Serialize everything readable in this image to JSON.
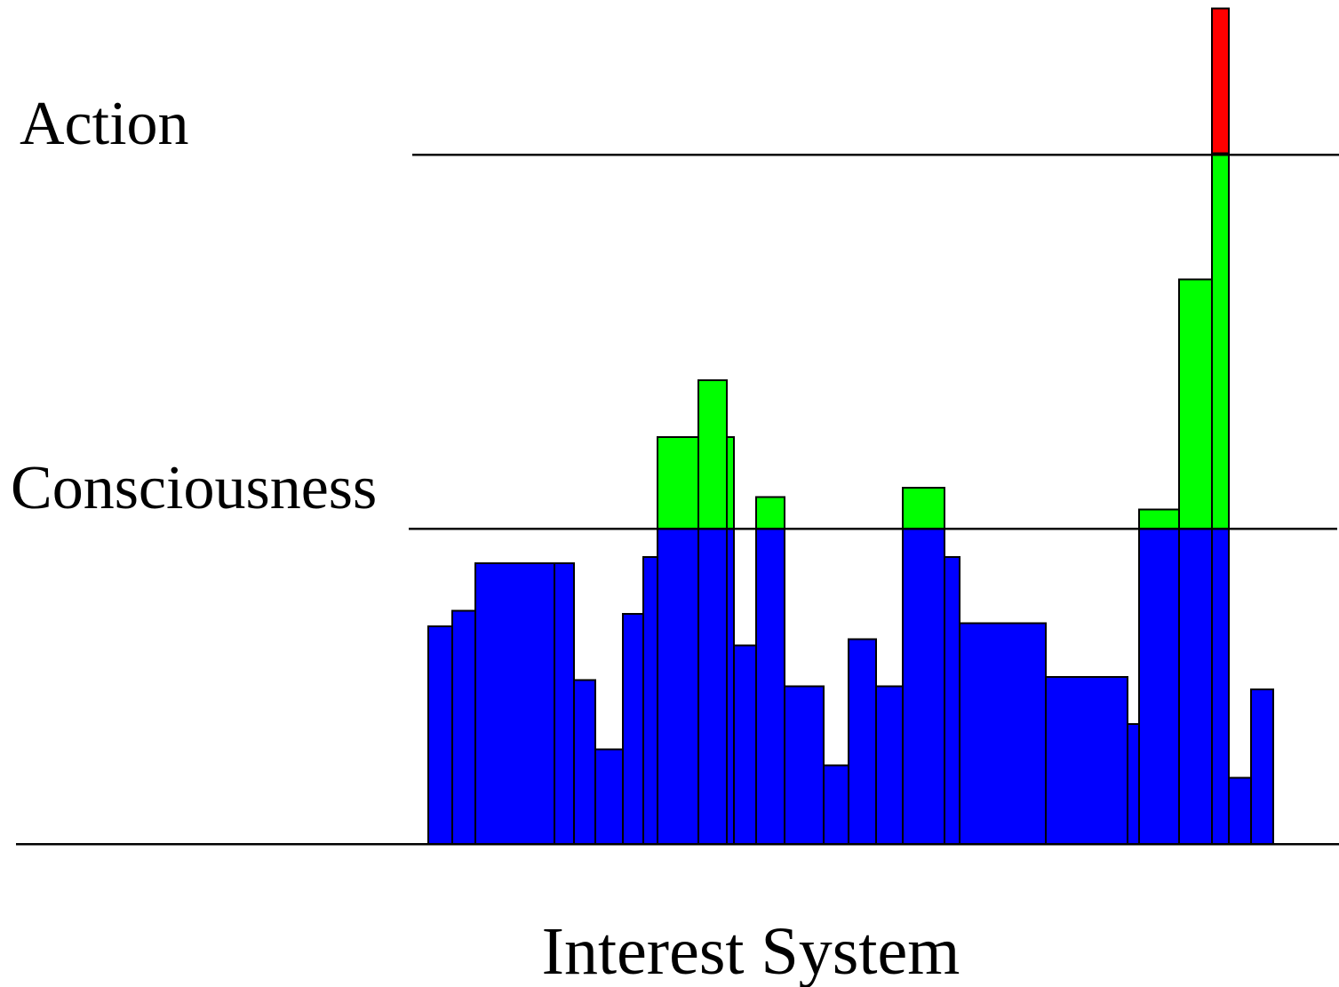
{
  "labels": {
    "action": "Action",
    "consciousness": "Consciousness",
    "title": "Interest System"
  },
  "colors": {
    "below_consciousness": "#0000ff",
    "above_consciousness": "#00ff00",
    "above_action": "#ff0000",
    "line": "#000000",
    "background": "#ffffff"
  },
  "chart_data": {
    "type": "bar",
    "title": "Interest System",
    "thresholds": [
      {
        "name": "Consciousness",
        "level": 100
      },
      {
        "name": "Action",
        "level": 219
      }
    ],
    "ylim": [
      0,
      265
    ],
    "bars": [
      {
        "level": 69
      },
      {
        "level": 74
      },
      {
        "level": 89
      },
      {
        "level": 89
      },
      {
        "level": 52
      },
      {
        "level": 30
      },
      {
        "level": 73
      },
      {
        "level": 91
      },
      {
        "level": 129
      },
      {
        "level": 147
      },
      {
        "level": 129
      },
      {
        "level": 63
      },
      {
        "level": 110
      },
      {
        "level": 50
      },
      {
        "level": 25
      },
      {
        "level": 65
      },
      {
        "level": 50
      },
      {
        "level": 113
      },
      {
        "level": 91
      },
      {
        "level": 70
      },
      {
        "level": 53
      },
      {
        "level": 38
      },
      {
        "level": 106
      },
      {
        "level": 179
      },
      {
        "level": 265
      },
      {
        "level": 21
      },
      {
        "level": 49
      }
    ]
  }
}
